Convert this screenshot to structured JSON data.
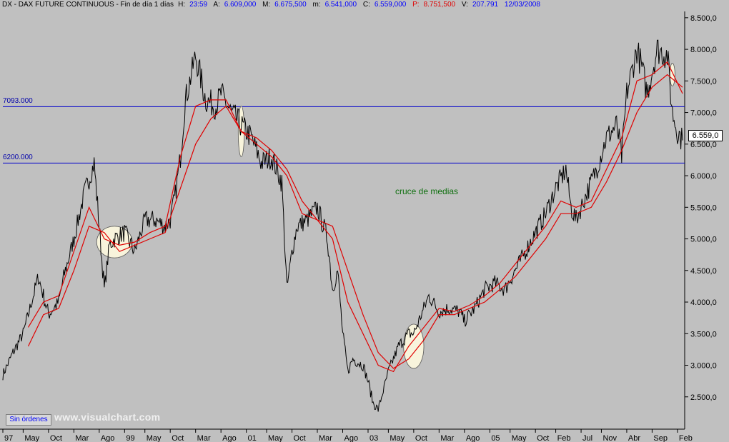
{
  "header": {
    "symbol": "DX - DAX FUTURE CONTINUOUS - Fin de día 1 días",
    "h_label": "H:",
    "h_value": "23:59",
    "a_label": "A:",
    "a_value": "6.609,000",
    "m_label": "M:",
    "m_value": "6.675,500",
    "mi_label": "m:",
    "mi_value": "6.541,000",
    "c_label": "C:",
    "c_value": "6.559,000",
    "p_label": "P:",
    "p_value": "8.751,500",
    "v_label": "V:",
    "v_value": "207.791",
    "date": "12/03/2008"
  },
  "orders_button": "Sin órdenes",
  "watermark": "www.visualchart.com",
  "annotation": "cruce de medias",
  "last_price": "6.559,0",
  "colors": {
    "background": "#c0c0c0",
    "price": "#000000",
    "moving_average": "#e00000",
    "hline": "#0000cc",
    "ellipse": "#f8f4dc"
  },
  "chart_data": {
    "type": "line",
    "title": "DX - DAX FUTURE CONTINUOUS",
    "ylim": [
      2000,
      8600
    ],
    "y_ticks": [
      2500,
      3000,
      3500,
      4000,
      4500,
      5000,
      5500,
      6000,
      6500,
      7000,
      7500,
      8000,
      8500
    ],
    "y_tick_labels": [
      "2.500,0",
      "3.000,0",
      "3.500,0",
      "4.000,0",
      "4.500,0",
      "5.000,0",
      "5.500,0",
      "6.000,0",
      "6.500,0",
      "7.000,0",
      "7.500,0",
      "8.000,0",
      "8.500,0"
    ],
    "x_tick_labels": [
      "97",
      "May",
      "Oct",
      "Mar",
      "Ago",
      "99",
      "May",
      "Oct",
      "Mar",
      "Ago",
      "01",
      "May",
      "Oct",
      "Mar",
      "Ago",
      "03",
      "May",
      "Oct",
      "Mar",
      "Ago",
      "05",
      "May",
      "Oct",
      "Feb",
      "Jul",
      "Nov",
      "Abr",
      "Sep",
      "Feb"
    ],
    "x_tick_dates": [
      "1997-01",
      "1997-05",
      "1997-10",
      "1998-03",
      "1998-08",
      "1999-01",
      "1999-05",
      "1999-10",
      "2000-03",
      "2000-08",
      "2001-01",
      "2001-05",
      "2001-10",
      "2002-03",
      "2002-08",
      "2003-01",
      "2003-05",
      "2003-10",
      "2004-03",
      "2004-08",
      "2005-01",
      "2005-05",
      "2005-10",
      "2006-02",
      "2006-07",
      "2006-11",
      "2007-04",
      "2007-09",
      "2008-02"
    ],
    "x_range": [
      "1997-01",
      "2008-03"
    ],
    "horizontal_lines": [
      {
        "label": "7093.000",
        "value": 7093
      },
      {
        "label": "6200.000",
        "value": 6200
      }
    ],
    "series": [
      {
        "name": "",
        "type": "price",
        "x": [
          "1997-01",
          "1997-03",
          "1997-05",
          "1997-07",
          "1997-08",
          "1997-10",
          "1997-12",
          "1998-01",
          "1998-03",
          "1998-05",
          "1998-07",
          "1998-08",
          "1998-09",
          "1998-10",
          "1998-11",
          "1999-01",
          "1999-03",
          "1999-05",
          "1999-07",
          "1999-09",
          "1999-10",
          "1999-11",
          "1999-12",
          "2000-01",
          "2000-03",
          "2000-05",
          "2000-07",
          "2000-08",
          "2000-10",
          "2000-12",
          "2001-02",
          "2001-04",
          "2001-06",
          "2001-08",
          "2001-09",
          "2001-10",
          "2001-11",
          "2002-01",
          "2002-03",
          "2002-05",
          "2002-06",
          "2002-07",
          "2002-08",
          "2002-09",
          "2002-10",
          "2002-12",
          "2003-01",
          "2003-02",
          "2003-03",
          "2003-05",
          "2003-07",
          "2003-09",
          "2003-10",
          "2003-12",
          "2004-01",
          "2004-03",
          "2004-05",
          "2004-07",
          "2004-08",
          "2004-10",
          "2004-12",
          "2005-02",
          "2005-04",
          "2005-06",
          "2005-08",
          "2005-10",
          "2005-12",
          "2006-02",
          "2006-04",
          "2006-05",
          "2006-06",
          "2006-08",
          "2006-10",
          "2006-12",
          "2007-02",
          "2007-03",
          "2007-04",
          "2007-06",
          "2007-07",
          "2007-08",
          "2007-10",
          "2007-12",
          "2008-01",
          "2008-02",
          "2008-03"
        ],
        "y": [
          2850,
          3200,
          3500,
          4100,
          4400,
          3800,
          4000,
          4400,
          5000,
          5700,
          6200,
          5200,
          4200,
          4900,
          5000,
          5100,
          4800,
          5300,
          5300,
          5200,
          5300,
          5700,
          6300,
          7200,
          7900,
          7200,
          7100,
          7300,
          7000,
          6800,
          6600,
          6200,
          6300,
          5900,
          4200,
          4800,
          5200,
          5300,
          5500,
          5000,
          4200,
          4500,
          3500,
          2900,
          3100,
          3000,
          2750,
          2400,
          2300,
          2900,
          3300,
          3500,
          3500,
          3900,
          4100,
          3850,
          3900,
          3850,
          3700,
          3900,
          4200,
          4300,
          4200,
          4500,
          4800,
          5100,
          5400,
          5800,
          6100,
          5500,
          5300,
          5700,
          6100,
          6600,
          6800,
          6300,
          7300,
          8000,
          7700,
          7300,
          8000,
          7900,
          7000,
          6700,
          6559
        ]
      },
      {
        "name": "",
        "type": "ma-fast",
        "x": [
          "1997-06",
          "1997-09",
          "1997-12",
          "1998-03",
          "1998-06",
          "1998-09",
          "1998-12",
          "1999-03",
          "1999-06",
          "1999-09",
          "1999-12",
          "2000-03",
          "2000-06",
          "2000-09",
          "2000-12",
          "2001-03",
          "2001-06",
          "2001-09",
          "2001-12",
          "2002-03",
          "2002-06",
          "2002-09",
          "2002-12",
          "2003-03",
          "2003-06",
          "2003-09",
          "2003-12",
          "2004-03",
          "2004-06",
          "2004-09",
          "2004-12",
          "2005-03",
          "2005-06",
          "2005-09",
          "2005-12",
          "2006-03",
          "2006-06",
          "2006-09",
          "2006-12",
          "2007-03",
          "2007-06",
          "2007-09",
          "2007-12",
          "2008-03"
        ],
        "y": [
          3600,
          4000,
          4100,
          4800,
          5500,
          5000,
          4900,
          4950,
          5100,
          5200,
          6300,
          7100,
          7200,
          7200,
          6700,
          6500,
          6300,
          6000,
          5400,
          5300,
          5000,
          4000,
          3500,
          3000,
          2900,
          3300,
          3600,
          3900,
          3850,
          3950,
          4100,
          4300,
          4600,
          4900,
          5200,
          5600,
          5500,
          5600,
          6100,
          6600,
          7500,
          7600,
          7800,
          7300
        ]
      },
      {
        "name": "",
        "type": "ma-slow",
        "x": [
          "1997-06",
          "1997-09",
          "1997-12",
          "1998-03",
          "1998-06",
          "1998-09",
          "1998-12",
          "1999-03",
          "1999-06",
          "1999-09",
          "1999-12",
          "2000-03",
          "2000-06",
          "2000-09",
          "2000-12",
          "2001-03",
          "2001-06",
          "2001-09",
          "2001-12",
          "2002-03",
          "2002-06",
          "2002-09",
          "2002-12",
          "2003-03",
          "2003-06",
          "2003-09",
          "2003-12",
          "2004-03",
          "2004-06",
          "2004-09",
          "2004-12",
          "2005-03",
          "2005-06",
          "2005-09",
          "2005-12",
          "2006-03",
          "2006-06",
          "2006-09",
          "2006-12",
          "2007-03",
          "2007-06",
          "2007-09",
          "2007-12",
          "2008-03"
        ],
        "y": [
          3300,
          3800,
          3900,
          4500,
          5200,
          5100,
          4800,
          4900,
          5000,
          5100,
          5800,
          6500,
          6900,
          7100,
          6700,
          6600,
          6400,
          6100,
          5600,
          5300,
          5200,
          4500,
          3800,
          3200,
          2950,
          3100,
          3400,
          3800,
          3800,
          3900,
          4000,
          4200,
          4400,
          4700,
          5000,
          5400,
          5400,
          5500,
          5900,
          6400,
          7000,
          7400,
          7600,
          7400
        ]
      }
    ],
    "ellipses": [
      {
        "cx": "1998-11",
        "cy": 4950,
        "rx_months": 3.5,
        "ry": 250
      },
      {
        "cx": "2000-12",
        "cy": 6700,
        "rx_months": 0.6,
        "ry": 400
      },
      {
        "cx": "2003-10",
        "cy": 3300,
        "rx_months": 2,
        "ry": 350
      },
      {
        "cx": "2008-01",
        "cy": 7600,
        "rx_months": 0.5,
        "ry": 180
      }
    ],
    "grid": false,
    "legend": "none"
  }
}
